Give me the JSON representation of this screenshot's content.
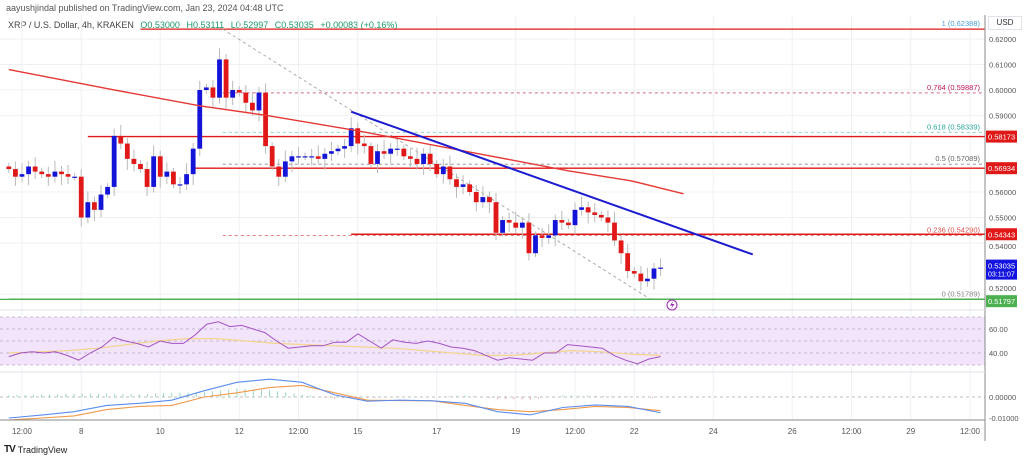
{
  "header": {
    "published": "aayushjindal published on TradingView.com, Jan 23, 2024 04:48 UTC",
    "symbol": "XRP / U.S. Dollar, 4h, KRAKEN",
    "open": "O0.53000",
    "high": "H0.53111",
    "low": "L0.52997",
    "close": "C0.53035",
    "change": "+0.00083 (+0.16%)"
  },
  "footer": {
    "brand": "TradingView"
  },
  "colors": {
    "up": "#1414d8",
    "down": "#e01818",
    "resistance": "#e01818",
    "support": "#4caf50",
    "trendline": "#1c1cd0",
    "sma": "#e53935",
    "rsi": "#a552c4",
    "rsi_ma": "#f3d58c",
    "rsi_band": "#f1e4fb",
    "macd": "#5b8def",
    "signal": "#f0994a"
  },
  "chart_data": {
    "type": "candlestick",
    "interval": "4h",
    "currency_label": "USD",
    "first_candle_time": "2024-01-06 04:00",
    "closes": [
      0.569,
      0.566,
      0.567,
      0.57,
      0.568,
      0.567,
      0.566,
      0.568,
      0.567,
      0.566,
      0.566,
      0.55,
      0.556,
      0.553,
      0.559,
      0.562,
      0.582,
      0.579,
      0.573,
      0.571,
      0.569,
      0.562,
      0.574,
      0.566,
      0.568,
      0.563,
      0.563,
      0.567,
      0.577,
      0.6,
      0.601,
      0.597,
      0.612,
      0.597,
      0.6,
      0.599,
      0.595,
      0.592,
      0.599,
      0.578,
      0.57,
      0.566,
      0.572,
      0.574,
      0.574,
      0.574,
      0.574,
      0.573,
      0.575,
      0.576,
      0.577,
      0.578,
      0.585,
      0.579,
      0.578,
      0.571,
      0.576,
      0.575,
      0.577,
      0.577,
      0.574,
      0.573,
      0.571,
      0.575,
      0.571,
      0.567,
      0.57,
      0.565,
      0.562,
      0.563,
      0.56,
      0.556,
      0.558,
      0.556,
      0.544,
      0.549,
      0.548,
      0.546,
      0.548,
      0.536,
      0.543,
      0.542,
      0.543,
      0.549,
      0.548,
      0.547,
      0.553,
      0.554,
      0.552,
      0.551,
      0.55,
      0.548,
      0.541,
      0.536,
      0.529,
      0.528,
      0.525,
      0.526,
      0.53,
      0.53035
    ],
    "price_axis": {
      "ticks": [
        "0.62000",
        "0.61000",
        "0.60000",
        "0.59000",
        "0.56000",
        "0.55000",
        "0.54000",
        "0.52000"
      ],
      "range": [
        0.512,
        0.628
      ]
    },
    "time_axis": [
      {
        "label": "12:00",
        "time": "2024-01-06 12:00"
      },
      {
        "label": "8",
        "time": "2024-01-08 00:00"
      },
      {
        "label": "10",
        "time": "2024-01-10 00:00"
      },
      {
        "label": "12",
        "time": "2024-01-12 00:00"
      },
      {
        "label": "12:00",
        "time": "2024-01-13 12:00"
      },
      {
        "label": "15",
        "time": "2024-01-15 00:00"
      },
      {
        "label": "17",
        "time": "2024-01-17 00:00"
      },
      {
        "label": "19",
        "time": "2024-01-19 00:00"
      },
      {
        "label": "12:00",
        "time": "2024-01-20 12:00"
      },
      {
        "label": "22",
        "time": "2024-01-22 00:00"
      },
      {
        "label": "24",
        "time": "2024-01-24 00:00"
      },
      {
        "label": "26",
        "time": "2024-01-26 00:00"
      },
      {
        "label": "12:00",
        "time": "2024-01-27 12:00"
      },
      {
        "label": "29",
        "time": "2024-01-29 00:00"
      },
      {
        "label": "12:00",
        "time": "2024-01-30 12:00"
      }
    ],
    "horizontal_levels": [
      {
        "price": 0.58173,
        "tag": "0.58173",
        "from": "2024-01-08 04:00",
        "kind": "resistance"
      },
      {
        "price": 0.56934,
        "tag": "0.56934",
        "from": "2024-01-10 20:00",
        "kind": "resistance"
      },
      {
        "price": 0.54343,
        "tag": "0.54343",
        "from": "2024-01-14 20:00",
        "kind": "resistance"
      },
      {
        "price": 0.51797,
        "tag": "0.51797",
        "from": "2024-01-06 04:00",
        "kind": "support"
      }
    ],
    "last_price": {
      "value": "0.53035",
      "countdown": "03:11:07"
    },
    "fibonacci": {
      "from": "2024-01-11 14:00",
      "levels": [
        {
          "ratio": "1",
          "price": 0.62388,
          "label": "1 (0.62388)",
          "color": "#4a9fd8",
          "line": "#e01818",
          "solid": true,
          "line_from": "2024-01-09 12:00"
        },
        {
          "ratio": "0.764",
          "price": 0.59887,
          "label": "0.764 (0.59887)",
          "color": "#c2185b",
          "line": "#d46a8a"
        },
        {
          "ratio": "0.618",
          "price": 0.58339,
          "label": "0.618 (0.58339)",
          "color": "#26a69a",
          "line": "#80cbc4"
        },
        {
          "ratio": "0.5",
          "price": 0.57089,
          "label": "0.5 (0.57089)",
          "color": "#666666",
          "line": "#888888"
        },
        {
          "ratio": "0.236",
          "price": 0.5429,
          "label": "0.236 (0.54290)",
          "color": "#e05050",
          "line": "#e07070"
        },
        {
          "ratio": "0",
          "price": 0.51789,
          "label": "0 (0.51789)",
          "color": "#888888",
          "line": "#4caf50",
          "solid": true
        }
      ],
      "trend": [
        [
          "2024-01-11 14:00",
          0.62388
        ],
        [
          "2024-01-22 10:00",
          0.51789
        ]
      ]
    },
    "trendline": [
      [
        "2024-01-14 20:00",
        0.5915
      ],
      [
        "2024-01-25 00:00",
        0.5355
      ]
    ],
    "sma_100": [
      [
        "2024-01-06 04:00",
        0.608
      ],
      [
        "2024-01-08 16:00",
        0.6005
      ],
      [
        "2024-01-11 00:00",
        0.5938
      ],
      [
        "2024-01-12 18:00",
        0.5899
      ],
      [
        "2024-01-15 00:00",
        0.584
      ],
      [
        "2024-01-18 08:00",
        0.5742
      ],
      [
        "2024-01-20 08:00",
        0.5683
      ],
      [
        "2024-01-21 22:00",
        0.5644
      ],
      [
        "2024-01-23 06:00",
        0.5593
      ]
    ],
    "rsi": {
      "ticks": [
        "60.00",
        "40.00"
      ],
      "levels": [
        70,
        30
      ],
      "values": [
        37,
        40,
        41,
        40,
        41,
        38,
        34,
        40,
        45,
        53,
        50,
        48,
        45,
        50,
        48,
        48,
        55,
        64,
        66,
        62,
        63,
        60,
        57,
        50,
        44,
        45,
        46,
        46,
        49,
        49,
        56,
        50,
        44,
        51,
        49,
        48,
        50,
        48,
        45,
        44,
        42,
        38,
        34,
        36,
        35,
        34,
        40,
        40,
        47,
        46,
        45,
        44,
        38,
        34,
        31,
        35,
        37
      ],
      "ma": [
        40,
        41,
        42,
        44,
        47,
        50,
        52,
        52,
        50,
        48,
        47,
        46,
        45,
        44,
        42,
        40,
        38,
        38,
        40,
        42,
        41,
        39,
        38
      ]
    },
    "macd": {
      "ticks": [
        "0.00000",
        "-0.01000"
      ],
      "macd": [
        -0.01,
        -0.0086,
        -0.007,
        -0.004,
        -0.003,
        -0.0015,
        0.003,
        0.007,
        0.0085,
        0.007,
        0.001,
        -0.002,
        -0.0015,
        -0.0018,
        -0.003,
        -0.007,
        -0.0085,
        -0.005,
        -0.0038,
        -0.0045,
        -0.0075
      ],
      "signal": [
        -0.011,
        -0.01,
        -0.009,
        -0.006,
        -0.0045,
        -0.004,
        0.0,
        0.002,
        0.0045,
        0.0055,
        0.002,
        -0.0015,
        -0.0017,
        -0.0018,
        -0.004,
        -0.006,
        -0.007,
        -0.006,
        -0.0045,
        -0.005,
        -0.0065
      ]
    }
  }
}
